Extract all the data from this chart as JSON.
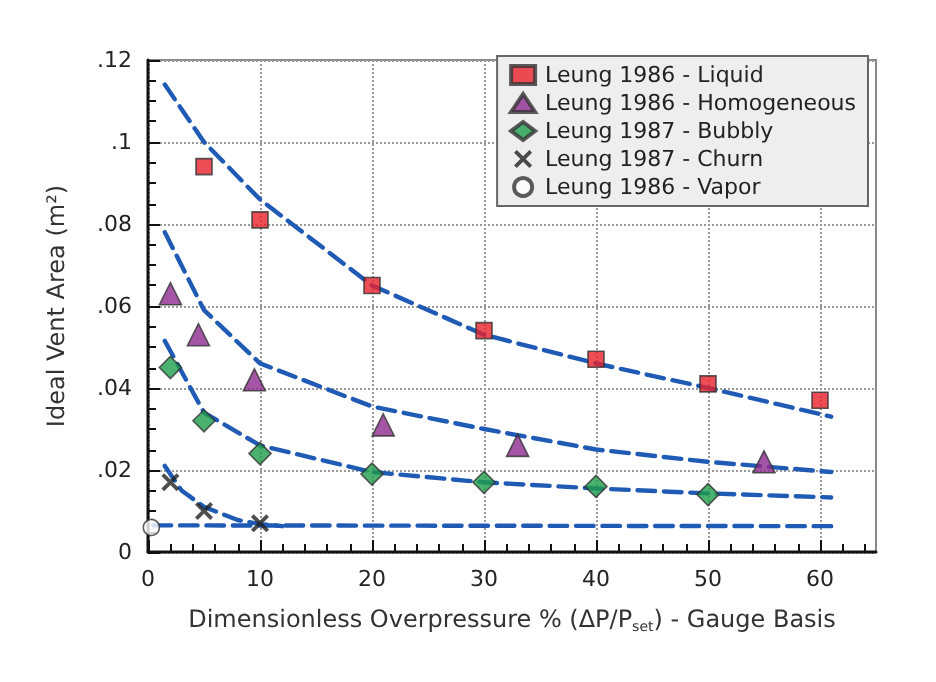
{
  "chart_data": {
    "type": "scatter",
    "xlabel": "Dimensionless Overpressure % (ΔP/P$_{set}$) - Gauge Basis",
    "ylabel": "Ideal Vent Area (m²)",
    "xlim": [
      0,
      65
    ],
    "xticks": [
      0,
      10,
      20,
      30,
      40,
      50,
      60
    ],
    "ylim": [
      0,
      0.12
    ],
    "yticks": [
      0,
      {
        "value": 0.02,
        "label": ".02"
      },
      {
        "value": 0.04,
        "label": ".04"
      },
      {
        "value": 0.06,
        "label": ".06"
      },
      {
        "value": 0.08,
        "label": ".08"
      },
      {
        "value": 0.1,
        "label": ".1"
      },
      {
        "value": 0.12,
        "label": ".12"
      }
    ],
    "grid": true,
    "legend": "top right",
    "series": [
      {
        "name": "Leung 1986 - Liquid",
        "marker": "square",
        "color": "#e8202a",
        "x": [
          5,
          10,
          20,
          30,
          40,
          50,
          60
        ],
        "values": [
          0.094,
          0.081,
          0.065,
          0.054,
          0.047,
          0.041,
          0.037
        ]
      },
      {
        "name": "Leung 1986 - Homogeneous",
        "marker": "triangle",
        "color": "#8e2a8e",
        "x": [
          2,
          4.5,
          9.5,
          21,
          33,
          55
        ],
        "values": [
          0.063,
          0.053,
          0.042,
          0.031,
          0.026,
          0.022
        ]
      },
      {
        "name": "Leung 1987 - Bubbly",
        "marker": "diamond",
        "color": "#1e9e4a",
        "x": [
          2,
          5,
          10,
          20,
          30,
          40,
          50
        ],
        "values": [
          0.045,
          0.032,
          0.024,
          0.019,
          0.017,
          0.016,
          0.014
        ]
      },
      {
        "name": "Leung 1987 - Churn",
        "marker": "cross",
        "color": "#222222",
        "x": [
          2,
          5,
          10
        ],
        "values": [
          0.017,
          0.01,
          0.007
        ]
      },
      {
        "name": "Leung 1986 - Vapor",
        "marker": "circle",
        "color": "#ffffff",
        "x": [
          0.3
        ],
        "values": [
          0.006
        ]
      },
      {
        "type": "line",
        "marker": "none",
        "line_style": "dashed",
        "color": "#1f5bb5",
        "x": [
          1.5,
          5,
          10,
          20,
          30,
          40,
          50,
          61
        ],
        "values": [
          0.114,
          0.1,
          0.086,
          0.065,
          0.053,
          0.046,
          0.04,
          0.033
        ]
      },
      {
        "type": "line",
        "marker": "none",
        "line_style": "dashed",
        "color": "#1f5bb5",
        "x": [
          1.5,
          5,
          10,
          20,
          30,
          40,
          50,
          61
        ],
        "values": [
          0.078,
          0.059,
          0.046,
          0.0355,
          0.03,
          0.025,
          0.022,
          0.0195
        ]
      },
      {
        "type": "line",
        "marker": "none",
        "line_style": "dashed",
        "color": "#1f5bb5",
        "x": [
          1.5,
          5,
          10,
          20,
          30,
          40,
          50,
          61
        ],
        "values": [
          0.0515,
          0.034,
          0.026,
          0.0195,
          0.017,
          0.0155,
          0.0143,
          0.0133
        ]
      },
      {
        "type": "line",
        "marker": "none",
        "line_style": "dashed",
        "color": "#1f5bb5",
        "x": [
          1.5,
          3,
          5,
          8,
          10,
          12
        ],
        "values": [
          0.021,
          0.015,
          0.011,
          0.0078,
          0.0068,
          0.0063
        ]
      },
      {
        "type": "line",
        "marker": "none",
        "line_style": "dashed",
        "color": "#1f5bb5",
        "x": [
          0.5,
          61
        ],
        "values": [
          0.0065,
          0.0063
        ]
      }
    ]
  }
}
